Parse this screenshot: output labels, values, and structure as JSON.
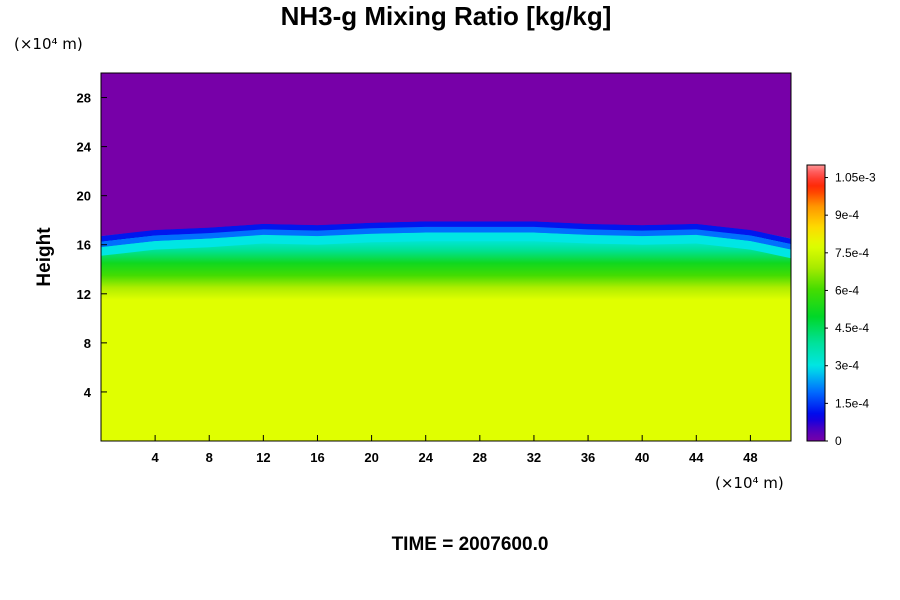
{
  "chart_data": {
    "type": "heatmap",
    "title": "NH3-g Mixing Ratio [kg/kg]",
    "xlabel": "",
    "ylabel": "Height",
    "x_unit_label": "(×10⁴ m)",
    "y_unit_label": "(×10⁴ m)",
    "xlim": [
      0,
      51
    ],
    "ylim": [
      0,
      30
    ],
    "x_ticks": [
      4,
      8,
      12,
      16,
      20,
      24,
      28,
      32,
      36,
      40,
      44,
      48
    ],
    "x_tick_labels": [
      "4",
      "8",
      "12",
      "16",
      "20",
      "24",
      "28",
      "32",
      "36",
      "40",
      "44",
      "48"
    ],
    "y_ticks": [
      4,
      8,
      12,
      16,
      20,
      24,
      28
    ],
    "y_tick_labels": [
      "4",
      "8",
      "12",
      "16",
      "20",
      "24",
      "28"
    ],
    "colorbar": {
      "min": 0,
      "max": 0.0011,
      "ticks": [
        0,
        0.00015,
        0.0003,
        0.00045,
        0.0006,
        0.00075,
        0.0009,
        0.00105
      ],
      "tick_labels": [
        "0",
        "1.5e-4",
        "3e-4",
        "4.5e-4",
        "6e-4",
        "7.5e-4",
        "9e-4",
        "1.05e-3"
      ]
    },
    "field_profile": {
      "height": [
        0,
        11.5,
        12.5,
        13.5,
        14.5,
        15.5,
        16.5,
        17.0,
        17.5,
        30
      ],
      "value": [
        0.00078,
        0.00078,
        0.0007,
        0.0006,
        0.00052,
        0.0004,
        0.0003,
        0.00012,
        0.0,
        0.0
      ]
    },
    "boundary_height": {
      "x": [
        0,
        4,
        8,
        12,
        16,
        20,
        24,
        28,
        32,
        36,
        40,
        44,
        48,
        51
      ],
      "y": [
        16.7,
        17.2,
        17.4,
        17.7,
        17.6,
        17.8,
        17.9,
        17.9,
        17.9,
        17.7,
        17.6,
        17.7,
        17.2,
        16.5
      ]
    },
    "colors": {
      "background": "#ffffff",
      "top_region": "#7700a8",
      "bottom_region": "#e0ff00"
    }
  },
  "footer": {
    "time_label": "TIME = 2007600.0"
  }
}
